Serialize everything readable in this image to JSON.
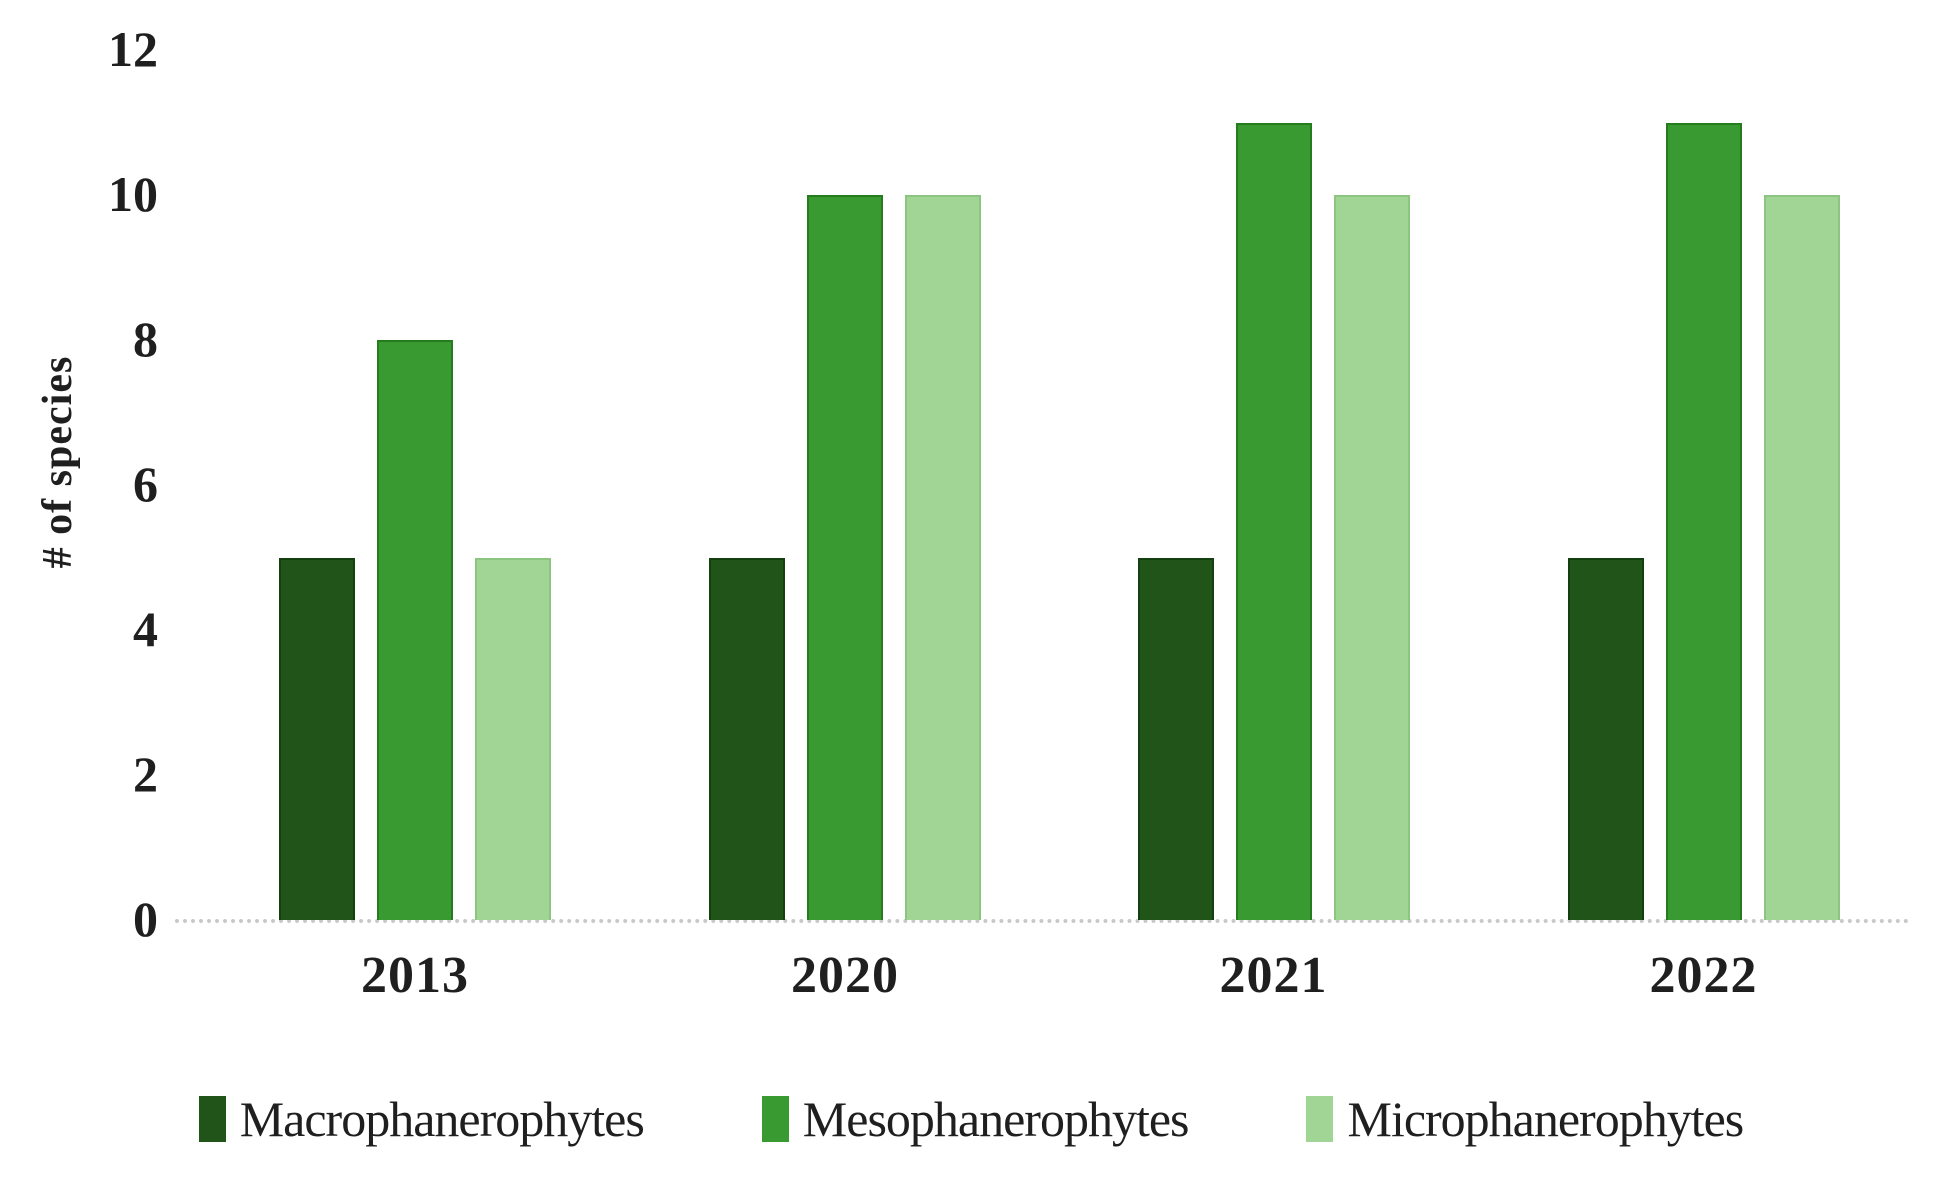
{
  "chart_data": {
    "type": "bar",
    "title": "",
    "xlabel": "",
    "ylabel": "# of species",
    "ylim": [
      0,
      12
    ],
    "yticks": [
      0,
      2,
      4,
      6,
      8,
      10,
      12
    ],
    "grid": false,
    "legend_position": "bottom",
    "axis_line_style": "dotted",
    "categories": [
      "2013",
      "2020",
      "2021",
      "2022"
    ],
    "series": [
      {
        "name": "Macrophanerophytes",
        "color": "#215418",
        "border_color": "#143f0e",
        "values": [
          5,
          5,
          5,
          5
        ]
      },
      {
        "name": "Mesophanerophytes",
        "color": "#3a9a32",
        "border_color": "#257c1e",
        "values": [
          8,
          10,
          11,
          11
        ]
      },
      {
        "name": "Microphanerophytes",
        "color": "#a0d595",
        "border_color": "#8cc580",
        "values": [
          5,
          10,
          10,
          10
        ]
      }
    ],
    "colors": {
      "axis_line": "#c9c9c9",
      "text": "#1f1f1f",
      "background": "#ffffff"
    }
  }
}
